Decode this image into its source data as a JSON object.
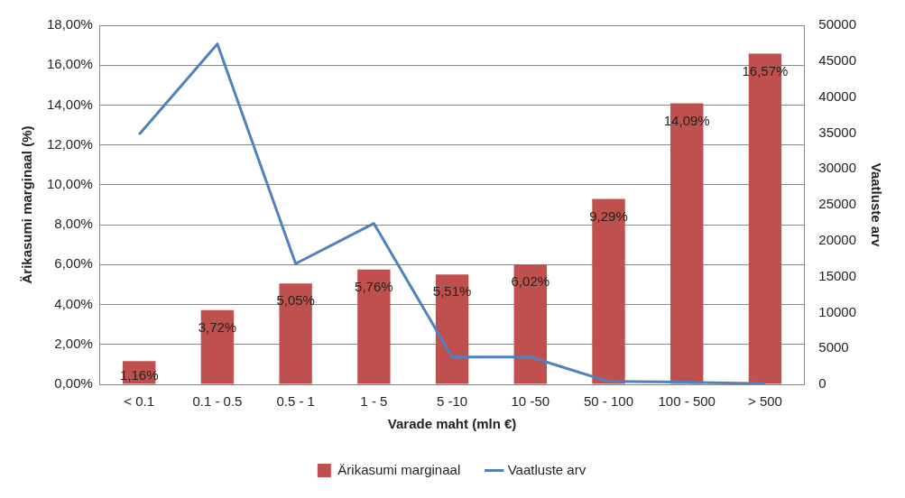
{
  "chart_data": {
    "type": "bar",
    "xlabel": "Varade maht (mln €)",
    "ylabel": "Ärikasumi marginaal (%)",
    "y2label": "Vaatluste arv",
    "categories": [
      "< 0.1",
      "0.1 - 0.5",
      "0.5 - 1",
      "1 - 5",
      "5 -10",
      "10 -50",
      "50 - 100",
      "100 - 500",
      "> 500"
    ],
    "series": [
      {
        "name": "Ärikasumi marginaal",
        "color": "#c0504d",
        "values": [
          1.16,
          3.72,
          5.05,
          5.76,
          5.51,
          6.02,
          9.29,
          14.09,
          16.57
        ],
        "value_labels": [
          "1,16%",
          "3,72%",
          "5,05%",
          "5,76%",
          "5,51%",
          "6,02%",
          "9,29%",
          "14,09%",
          "16,57%"
        ]
      },
      {
        "name": "Vaatluste arv",
        "type": "line",
        "axis": "y2",
        "color": "#4f81bd",
        "values": [
          34800,
          47400,
          16800,
          22400,
          3800,
          3800,
          400,
          300,
          100
        ]
      }
    ],
    "ylim": [
      0,
      18
    ],
    "yticks": [
      {
        "value": 0,
        "label": "0,00%"
      },
      {
        "value": 2,
        "label": "2,00%"
      },
      {
        "value": 4,
        "label": "4,00%"
      },
      {
        "value": 6,
        "label": "6,00%"
      },
      {
        "value": 8,
        "label": "8,00%"
      },
      {
        "value": 10,
        "label": "10,00%"
      },
      {
        "value": 12,
        "label": "12,00%"
      },
      {
        "value": 14,
        "label": "14,00%"
      },
      {
        "value": 16,
        "label": "16,00%"
      },
      {
        "value": 18,
        "label": "18,00%"
      }
    ],
    "y2lim": [
      0,
      50000
    ],
    "y2ticks": [
      0,
      5000,
      10000,
      15000,
      20000,
      25000,
      30000,
      35000,
      40000,
      45000,
      50000
    ],
    "grid": "y",
    "legend": "bottom",
    "marker": "none",
    "line_style": "solid"
  }
}
